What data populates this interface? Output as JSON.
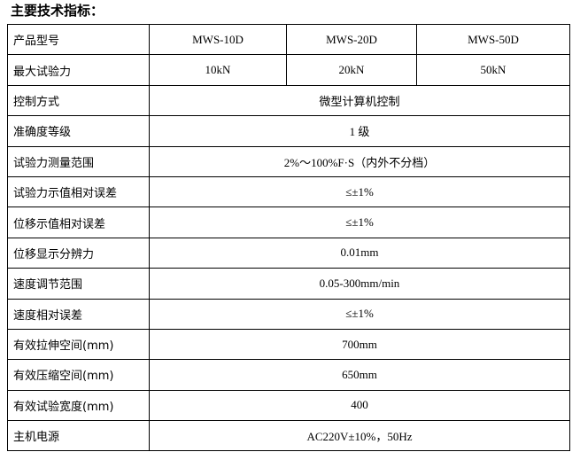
{
  "title": "主要技术指标：",
  "header": {
    "label": "产品型号",
    "models": [
      "MWS-10D",
      "MWS-20D",
      "MWS-50D"
    ]
  },
  "max_force": {
    "label": "最大试验力",
    "values": [
      "10kN",
      "20kN",
      "50kN"
    ]
  },
  "rows": [
    {
      "label": "控制方式",
      "value": "微型计算机控制"
    },
    {
      "label": "准确度等级",
      "value": "1 级"
    },
    {
      "label": "试验力测量范围",
      "value": "2%～100%F·S（内外不分档）"
    },
    {
      "label": "试验力示值相对误差",
      "value": "≤±1%"
    },
    {
      "label": "位移示值相对误差",
      "value": "≤±1%"
    },
    {
      "label": "位移显示分辨力",
      "value": "0.01mm"
    },
    {
      "label": "速度调节范围",
      "value": "0.05-300mm/min"
    },
    {
      "label": "速度相对误差",
      "value": "≤±1%"
    },
    {
      "label": "有效拉伸空间(mm)",
      "value": "700mm"
    },
    {
      "label": "有效压缩空间(mm)",
      "value": "650mm"
    },
    {
      "label": "有效试验宽度(mm)",
      "value": "400"
    },
    {
      "label": "主机电源",
      "value": "AC220V±10%，50Hz"
    }
  ]
}
